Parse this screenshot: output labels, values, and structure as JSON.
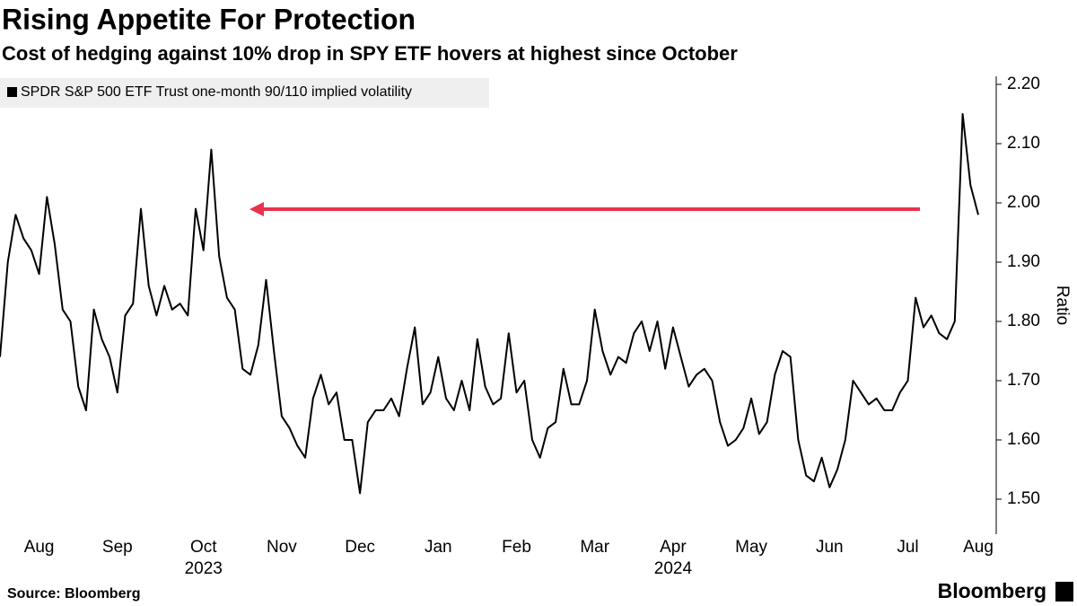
{
  "chart_data": {
    "type": "line",
    "title": "Rising Appetite For Protection",
    "subtitle": "Cost of hedging against 10% drop in SPY ETF hovers at highest since October",
    "ylabel": "Ratio",
    "source": "Source: Bloomberg",
    "brand": "Bloomberg",
    "categories": [
      null,
      null,
      null,
      null,
      null,
      "Aug",
      null,
      null,
      null,
      null,
      null,
      null,
      null,
      null,
      null,
      "Sep",
      null,
      null,
      null,
      null,
      null,
      null,
      null,
      null,
      null,
      null,
      "Oct",
      null,
      null,
      null,
      null,
      null,
      null,
      null,
      null,
      null,
      "Nov",
      null,
      null,
      null,
      null,
      null,
      null,
      null,
      null,
      null,
      "Dec",
      null,
      null,
      null,
      null,
      null,
      null,
      null,
      null,
      null,
      "Jan",
      null,
      null,
      null,
      null,
      null,
      null,
      null,
      null,
      null,
      "Feb",
      null,
      null,
      null,
      null,
      null,
      null,
      null,
      null,
      null,
      "Mar",
      null,
      null,
      null,
      null,
      null,
      null,
      null,
      null,
      null,
      "Apr",
      null,
      null,
      null,
      null,
      null,
      null,
      null,
      null,
      null,
      "May",
      null,
      null,
      null,
      null,
      null,
      null,
      null,
      null,
      null,
      "Jun",
      null,
      null,
      null,
      null,
      null,
      null,
      null,
      null,
      null,
      "Jul",
      null,
      null,
      null,
      null,
      null,
      null,
      null,
      null,
      "Aug"
    ],
    "years": [
      null,
      null,
      null,
      null,
      null,
      null,
      null,
      null,
      null,
      null,
      null,
      null,
      null,
      null,
      null,
      null,
      null,
      null,
      null,
      null,
      null,
      null,
      null,
      null,
      null,
      null,
      "2023",
      null,
      null,
      null,
      null,
      null,
      null,
      null,
      null,
      null,
      null,
      null,
      null,
      null,
      null,
      null,
      null,
      null,
      null,
      null,
      null,
      null,
      null,
      null,
      null,
      null,
      null,
      null,
      null,
      null,
      null,
      null,
      null,
      null,
      null,
      null,
      null,
      null,
      null,
      null,
      null,
      null,
      null,
      null,
      null,
      null,
      null,
      null,
      null,
      null,
      null,
      null,
      null,
      null,
      null,
      null,
      null,
      null,
      null,
      null,
      "2024",
      null,
      null,
      null,
      null,
      null,
      null,
      null,
      null,
      null,
      null,
      null,
      null,
      null,
      null,
      null,
      null,
      null,
      null,
      null,
      null,
      null,
      null,
      null,
      null,
      null,
      null,
      null,
      null,
      null,
      null,
      null,
      null,
      null,
      null,
      null,
      null,
      null,
      null,
      null
    ],
    "series": [
      {
        "name": "SPDR S&P 500 ETF Trust one-month 90/110 implied volatility",
        "color": "#000000",
        "values": [
          1.74,
          1.9,
          1.98,
          1.94,
          1.92,
          1.88,
          2.01,
          1.93,
          1.82,
          1.8,
          1.69,
          1.65,
          1.82,
          1.77,
          1.74,
          1.68,
          1.81,
          1.83,
          1.99,
          1.86,
          1.81,
          1.86,
          1.82,
          1.83,
          1.81,
          1.99,
          1.92,
          2.09,
          1.91,
          1.84,
          1.82,
          1.72,
          1.71,
          1.76,
          1.87,
          1.75,
          1.64,
          1.62,
          1.59,
          1.57,
          1.67,
          1.71,
          1.66,
          1.68,
          1.6,
          1.6,
          1.51,
          1.63,
          1.65,
          1.65,
          1.67,
          1.64,
          1.72,
          1.79,
          1.66,
          1.68,
          1.74,
          1.67,
          1.65,
          1.7,
          1.65,
          1.77,
          1.69,
          1.66,
          1.67,
          1.78,
          1.68,
          1.7,
          1.6,
          1.57,
          1.62,
          1.63,
          1.72,
          1.66,
          1.66,
          1.7,
          1.82,
          1.75,
          1.71,
          1.74,
          1.73,
          1.78,
          1.8,
          1.75,
          1.8,
          1.72,
          1.79,
          1.74,
          1.69,
          1.71,
          1.72,
          1.7,
          1.63,
          1.59,
          1.6,
          1.62,
          1.67,
          1.61,
          1.63,
          1.71,
          1.75,
          1.74,
          1.6,
          1.54,
          1.53,
          1.57,
          1.52,
          1.55,
          1.6,
          1.7,
          1.68,
          1.66,
          1.67,
          1.65,
          1.65,
          1.68,
          1.7,
          1.84,
          1.79,
          1.81,
          1.78,
          1.77,
          1.8,
          2.15,
          2.03,
          1.98
        ]
      }
    ],
    "ylim": [
      1.45,
      2.23
    ],
    "yticks": [
      {
        "value": 1.5,
        "label": "1.50"
      },
      {
        "value": 1.6,
        "label": "1.60"
      },
      {
        "value": 1.7,
        "label": "1.70"
      },
      {
        "value": 1.8,
        "label": "1.80"
      },
      {
        "value": 1.9,
        "label": "1.90"
      },
      {
        "value": 2.0,
        "label": "2.00"
      },
      {
        "value": 2.1,
        "label": "2.10"
      },
      {
        "value": 2.2,
        "label": "2.20"
      }
    ],
    "grid": false
  }
}
